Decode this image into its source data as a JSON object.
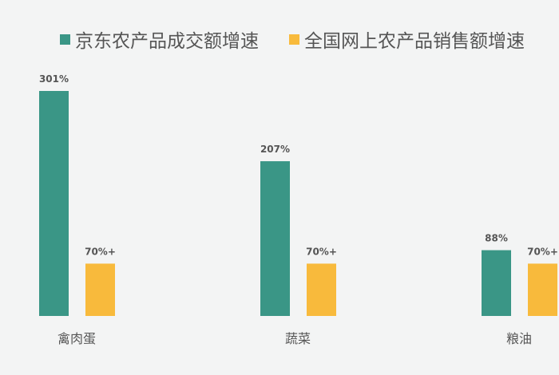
{
  "chart_data": {
    "type": "bar",
    "categories": [
      "禽肉蛋",
      "蔬菜",
      "粮油"
    ],
    "series": [
      {
        "name": "京东农产品成交额增速",
        "values": [
          301,
          207,
          88
        ],
        "labels": [
          "301%",
          "207%",
          "88%"
        ],
        "color": "#3a9686"
      },
      {
        "name": "全国网上农产品销售额增速",
        "values": [
          70,
          70,
          70
        ],
        "labels": [
          "70%+",
          "70%+",
          "70%+"
        ],
        "color": "#f8ba3c"
      }
    ],
    "ylim": [
      0,
      301
    ],
    "legend": "top",
    "grid": false
  }
}
